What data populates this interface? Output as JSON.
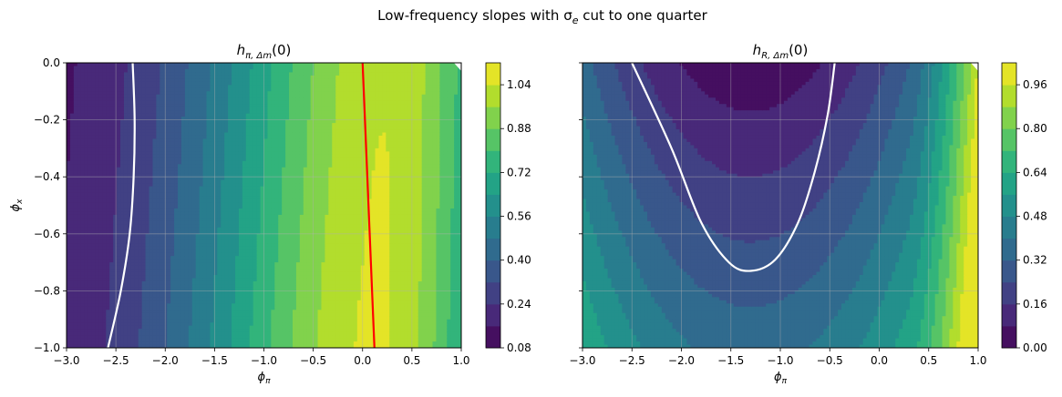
{
  "figure": {
    "title": "Low-frequency slopes with σ",
    "title_sub": "e",
    "title_tail": " cut to one quarter"
  },
  "chart_data": [
    {
      "type": "heatmap",
      "title_main": "h",
      "title_sub": "π, Δm",
      "title_tail": "(0)",
      "xlabel_main": "ϕ",
      "xlabel_sub": "π",
      "ylabel_main": "ϕ",
      "ylabel_sub": "x",
      "xlim": [
        -3.0,
        1.0
      ],
      "ylim": [
        -1.0,
        0.0
      ],
      "x_ticks": [
        -3.0,
        -2.5,
        -2.0,
        -1.5,
        -1.0,
        -0.5,
        0.0,
        0.5,
        1.0
      ],
      "x_tick_labels": [
        "−3.0",
        "−2.5",
        "−2.0",
        "−1.5",
        "−1.0",
        "−0.5",
        "0.0",
        "0.5",
        "1.0"
      ],
      "y_ticks": [
        0.0,
        -0.2,
        -0.4,
        -0.6,
        -0.8,
        -1.0
      ],
      "y_tick_labels": [
        "0.0",
        "−0.2",
        "−0.4",
        "−0.6",
        "−0.8",
        "−1.0"
      ],
      "grid": true,
      "colorbar": {
        "min": 0.08,
        "max": 1.12,
        "levels": 13,
        "ticks": [
          0.08,
          0.24,
          0.4,
          0.56,
          0.72,
          0.88,
          1.04
        ],
        "tick_labels": [
          "0.08",
          "0.24",
          "0.40",
          "0.56",
          "0.72",
          "0.88",
          "1.04"
        ]
      },
      "contour_lines": [
        {
          "color": "#ffffff",
          "points": [
            [
              -2.58,
              -1.0
            ],
            [
              -2.45,
              -0.8
            ],
            [
              -2.36,
              -0.6
            ],
            [
              -2.32,
              -0.4
            ],
            [
              -2.31,
              -0.2
            ],
            [
              -2.33,
              0.0
            ]
          ]
        },
        {
          "color": "#ff0000",
          "points": [
            [
              0.0,
              0.0
            ],
            [
              0.12,
              -1.0
            ]
          ]
        }
      ]
    },
    {
      "type": "heatmap",
      "title_main": "h",
      "title_sub": "R, Δm",
      "title_tail": "(0)",
      "xlabel_main": "ϕ",
      "xlabel_sub": "π",
      "ylabel_main": "",
      "ylabel_sub": "",
      "xlim": [
        -3.0,
        1.0
      ],
      "ylim": [
        -1.0,
        0.0
      ],
      "x_ticks": [
        -3.0,
        -2.5,
        -2.0,
        -1.5,
        -1.0,
        -0.5,
        0.0,
        0.5,
        1.0
      ],
      "x_tick_labels": [
        "−3.0",
        "−2.5",
        "−2.0",
        "−1.5",
        "−1.0",
        "−0.5",
        "0.0",
        "0.5",
        "1.0"
      ],
      "y_ticks": [
        0.0,
        -0.2,
        -0.4,
        -0.6,
        -0.8,
        -1.0
      ],
      "y_tick_labels": [],
      "grid": true,
      "colorbar": {
        "min": 0.0,
        "max": 1.04,
        "levels": 13,
        "ticks": [
          0.0,
          0.16,
          0.32,
          0.48,
          0.64,
          0.8,
          0.96
        ],
        "tick_labels": [
          "0.00",
          "0.16",
          "0.32",
          "0.48",
          "0.64",
          "0.80",
          "0.96"
        ]
      },
      "contour_lines": [
        {
          "color": "#ffffff",
          "points": [
            [
              -2.5,
              0.0
            ],
            [
              -2.1,
              -0.3
            ],
            [
              -1.8,
              -0.56
            ],
            [
              -1.52,
              -0.7
            ],
            [
              -1.3,
              -0.73
            ],
            [
              -1.05,
              -0.69
            ],
            [
              -0.82,
              -0.56
            ],
            [
              -0.65,
              -0.38
            ],
            [
              -0.52,
              -0.18
            ],
            [
              -0.45,
              0.0
            ]
          ]
        }
      ]
    }
  ]
}
